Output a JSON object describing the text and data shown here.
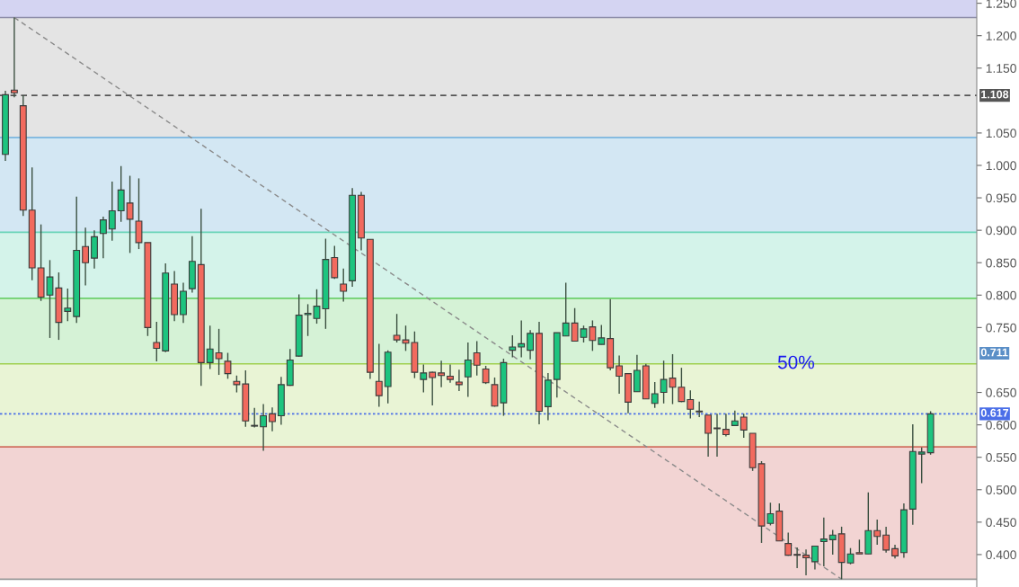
{
  "chart_data": {
    "type": "candlestick",
    "categories": [
      null,
      null,
      null,
      null,
      null,
      null,
      null,
      null,
      null,
      null,
      null,
      null,
      null,
      null,
      null,
      null,
      null,
      null,
      null,
      null,
      null,
      null,
      null,
      null,
      null,
      null,
      null,
      null,
      null,
      null,
      null,
      null,
      null,
      null,
      null,
      null,
      null,
      null,
      null,
      null,
      null,
      null,
      null,
      null,
      null,
      null,
      null,
      null,
      null,
      null,
      null,
      null,
      null,
      null,
      null,
      null,
      null,
      null,
      null,
      null,
      null,
      null,
      null,
      null,
      null,
      null,
      null,
      null,
      null,
      null,
      null,
      null,
      null,
      null,
      null,
      null,
      null,
      null,
      null,
      null,
      null,
      null,
      null,
      null,
      null,
      null,
      null,
      null,
      null,
      null,
      null,
      null,
      null,
      null,
      null,
      null,
      null,
      null,
      null,
      null,
      null,
      null,
      null,
      null,
      null
    ],
    "ohlc": [
      [
        1.017,
        1.115,
        1.007,
        1.109
      ],
      [
        1.116,
        1.228,
        1.105,
        1.112
      ],
      [
        1.092,
        1.108,
        0.922,
        0.931
      ],
      [
        0.931,
        0.997,
        0.823,
        0.842
      ],
      [
        0.842,
        0.909,
        0.791,
        0.797
      ],
      [
        0.8,
        0.854,
        0.734,
        0.828
      ],
      [
        0.811,
        0.835,
        0.731,
        0.758
      ],
      [
        0.775,
        0.81,
        0.76,
        0.78
      ],
      [
        0.767,
        0.952,
        0.757,
        0.869
      ],
      [
        0.875,
        0.904,
        0.815,
        0.85
      ],
      [
        0.857,
        0.9,
        0.841,
        0.89
      ],
      [
        0.895,
        0.921,
        0.857,
        0.916
      ],
      [
        0.902,
        0.975,
        0.884,
        0.93
      ],
      [
        0.93,
        0.999,
        0.913,
        0.962
      ],
      [
        0.942,
        0.984,
        0.865,
        0.917
      ],
      [
        0.914,
        0.98,
        0.871,
        0.881
      ],
      [
        0.881,
        0.881,
        0.737,
        0.75
      ],
      [
        0.727,
        0.759,
        0.698,
        0.718
      ],
      [
        0.714,
        0.849,
        0.712,
        0.834
      ],
      [
        0.817,
        0.837,
        0.76,
        0.77
      ],
      [
        0.77,
        0.819,
        0.757,
        0.806
      ],
      [
        0.81,
        0.891,
        0.804,
        0.852
      ],
      [
        0.847,
        0.933,
        0.66,
        0.696
      ],
      [
        0.696,
        0.753,
        0.686,
        0.717
      ],
      [
        0.711,
        0.748,
        0.677,
        0.702
      ],
      [
        0.698,
        0.711,
        0.671,
        0.679
      ],
      [
        0.667,
        0.676,
        0.65,
        0.662
      ],
      [
        0.663,
        0.684,
        0.597,
        0.606
      ],
      [
        0.598,
        0.626,
        0.596,
        0.599
      ],
      [
        0.597,
        0.632,
        0.56,
        0.614
      ],
      [
        0.617,
        0.627,
        0.59,
        0.605
      ],
      [
        0.614,
        0.674,
        0.6,
        0.662
      ],
      [
        0.661,
        0.717,
        0.66,
        0.7
      ],
      [
        0.706,
        0.801,
        0.705,
        0.769
      ],
      [
        0.77,
        0.786,
        0.737,
        0.772
      ],
      [
        0.764,
        0.809,
        0.756,
        0.783
      ],
      [
        0.779,
        0.887,
        0.748,
        0.855
      ],
      [
        0.858,
        0.876,
        0.825,
        0.827
      ],
      [
        0.817,
        0.841,
        0.79,
        0.806
      ],
      [
        0.822,
        0.965,
        0.813,
        0.954
      ],
      [
        0.954,
        0.959,
        0.869,
        0.888
      ],
      [
        0.886,
        0.886,
        0.671,
        0.681
      ],
      [
        0.667,
        0.725,
        0.628,
        0.645
      ],
      [
        0.659,
        0.715,
        0.633,
        0.712
      ],
      [
        0.738,
        0.771,
        0.727,
        0.731
      ],
      [
        0.731,
        0.753,
        0.714,
        0.726
      ],
      [
        0.727,
        0.744,
        0.672,
        0.681
      ],
      [
        0.67,
        0.693,
        0.65,
        0.68
      ],
      [
        0.681,
        0.682,
        0.63,
        0.673
      ],
      [
        0.68,
        0.699,
        0.658,
        0.676
      ],
      [
        0.675,
        0.693,
        0.665,
        0.67
      ],
      [
        0.666,
        0.685,
        0.652,
        0.662
      ],
      [
        0.674,
        0.727,
        0.643,
        0.7
      ],
      [
        0.711,
        0.729,
        0.676,
        0.692
      ],
      [
        0.686,
        0.691,
        0.663,
        0.665
      ],
      [
        0.662,
        0.673,
        0.628,
        0.629
      ],
      [
        0.634,
        0.702,
        0.614,
        0.696
      ],
      [
        0.715,
        0.738,
        0.704,
        0.72
      ],
      [
        0.72,
        0.761,
        0.704,
        0.725
      ],
      [
        0.715,
        0.746,
        0.701,
        0.741
      ],
      [
        0.741,
        0.759,
        0.601,
        0.621
      ],
      [
        0.628,
        0.68,
        0.607,
        0.669
      ],
      [
        0.67,
        0.742,
        0.642,
        0.742
      ],
      [
        0.737,
        0.819,
        0.737,
        0.757
      ],
      [
        0.757,
        0.78,
        0.729,
        0.729
      ],
      [
        0.735,
        0.753,
        0.727,
        0.748
      ],
      [
        0.751,
        0.761,
        0.714,
        0.73
      ],
      [
        0.724,
        0.754,
        0.724,
        0.734
      ],
      [
        0.733,
        0.794,
        0.684,
        0.688
      ],
      [
        0.691,
        0.707,
        0.648,
        0.675
      ],
      [
        0.679,
        0.679,
        0.618,
        0.635
      ],
      [
        0.651,
        0.708,
        0.651,
        0.684
      ],
      [
        0.691,
        0.694,
        0.64,
        0.64
      ],
      [
        0.633,
        0.666,
        0.626,
        0.648
      ],
      [
        0.65,
        0.699,
        0.633,
        0.67
      ],
      [
        0.672,
        0.709,
        0.632,
        0.658
      ],
      [
        0.658,
        0.688,
        0.635,
        0.636
      ],
      [
        0.639,
        0.653,
        0.61,
        0.624
      ],
      [
        0.621,
        0.636,
        0.612,
        0.62
      ],
      [
        0.615,
        0.615,
        0.551,
        0.587
      ],
      [
        0.595,
        0.617,
        0.551,
        0.594
      ],
      [
        0.593,
        0.617,
        0.582,
        0.585
      ],
      [
        0.599,
        0.622,
        0.599,
        0.606
      ],
      [
        0.612,
        0.617,
        0.58,
        0.592
      ],
      [
        0.587,
        0.587,
        0.529,
        0.534
      ],
      [
        0.54,
        0.544,
        0.418,
        0.444
      ],
      [
        0.448,
        0.48,
        0.445,
        0.463
      ],
      [
        0.467,
        0.479,
        0.421,
        0.421
      ],
      [
        0.417,
        0.434,
        0.398,
        0.399
      ],
      [
        0.4,
        0.411,
        0.379,
        0.399
      ],
      [
        0.399,
        0.408,
        0.368,
        0.395
      ],
      [
        0.389,
        0.413,
        0.377,
        0.413
      ],
      [
        0.42,
        0.457,
        0.382,
        0.424
      ],
      [
        0.423,
        0.438,
        0.4,
        0.43
      ],
      [
        0.432,
        0.443,
        0.362,
        0.388
      ],
      [
        0.387,
        0.41,
        0.385,
        0.401
      ],
      [
        0.403,
        0.423,
        0.401,
        0.401
      ],
      [
        0.401,
        0.496,
        0.401,
        0.437
      ],
      [
        0.437,
        0.454,
        0.415,
        0.428
      ],
      [
        0.43,
        0.443,
        0.403,
        0.407
      ],
      [
        0.409,
        0.415,
        0.394,
        0.398
      ],
      [
        0.403,
        0.479,
        0.395,
        0.469
      ],
      [
        0.47,
        0.601,
        0.446,
        0.559
      ],
      [
        0.555,
        0.565,
        0.51,
        0.558
      ],
      [
        0.557,
        0.621,
        0.554,
        0.617
      ]
    ],
    "colors": [
      "#1dc47f",
      "#f26a5e",
      "#f26a5e",
      "#f26a5e",
      "#f26a5e",
      "#1dc47f",
      "#f26a5e",
      "#1dc47f",
      "#1dc47f",
      "#f26a5e",
      "#1dc47f",
      "#1dc47f",
      "#1dc47f",
      "#1dc47f",
      "#f26a5e",
      "#f26a5e",
      "#f26a5e",
      "#f26a5e",
      "#1dc47f",
      "#f26a5e",
      "#1dc47f",
      "#1dc47f",
      "#f26a5e",
      "#1dc47f",
      "#f26a5e",
      "#f26a5e",
      "#f26a5e",
      "#f26a5e",
      "#1dc47f",
      "#1dc47f",
      "#f26a5e",
      "#1dc47f",
      "#1dc47f",
      "#1dc47f",
      "#1dc47f",
      "#1dc47f",
      "#1dc47f",
      "#f26a5e",
      "#f26a5e",
      "#1dc47f",
      "#f26a5e",
      "#f26a5e",
      "#f26a5e",
      "#1dc47f",
      "#f26a5e",
      "#f26a5e",
      "#f26a5e",
      "#1dc47f",
      "#f26a5e",
      "#f26a5e",
      "#f26a5e",
      "#f26a5e",
      "#1dc47f",
      "#f26a5e",
      "#f26a5e",
      "#f26a5e",
      "#1dc47f",
      "#1dc47f",
      "#1dc47f",
      "#1dc47f",
      "#f26a5e",
      "#1dc47f",
      "#1dc47f",
      "#1dc47f",
      "#f26a5e",
      "#1dc47f",
      "#f26a5e",
      "#1dc47f",
      "#f26a5e",
      "#f26a5e",
      "#f26a5e",
      "#1dc47f",
      "#f26a5e",
      "#1dc47f",
      "#1dc47f",
      "#f26a5e",
      "#f26a5e",
      "#f26a5e",
      "#f26a5e",
      "#f26a5e",
      "#f26a5e",
      "#f26a5e",
      "#1dc47f",
      "#f26a5e",
      "#f26a5e",
      "#f26a5e",
      "#1dc47f",
      "#f26a5e",
      "#f26a5e",
      "#f26a5e",
      "#f26a5e",
      "#1dc47f",
      "#1dc47f",
      "#1dc47f",
      "#f26a5e",
      "#1dc47f",
      "#f26a5e",
      "#1dc47f",
      "#f26a5e",
      "#f26a5e",
      "#f26a5e",
      "#1dc47f",
      "#1dc47f",
      "#1dc47f",
      "#1dc47f"
    ],
    "series": [
      {
        "type": "line",
        "color": "#8a8a8a",
        "line_style": "dashed",
        "values": [
          null,
          1.228,
          null,
          null,
          null,
          null,
          null,
          null,
          null,
          null,
          null,
          null,
          null,
          null,
          null,
          null,
          null,
          null,
          null,
          null,
          null,
          null,
          null,
          null,
          null,
          null,
          null,
          null,
          null,
          null,
          null,
          null,
          null,
          null,
          null,
          null,
          null,
          null,
          null,
          null,
          null,
          null,
          null,
          null,
          null,
          null,
          null,
          null,
          null,
          null,
          null,
          null,
          null,
          null,
          null,
          null,
          null,
          null,
          null,
          null,
          null,
          null,
          null,
          null,
          null,
          null,
          null,
          null,
          null,
          null,
          null,
          null,
          null,
          null,
          null,
          null,
          null,
          null,
          null,
          null,
          null,
          null,
          null,
          null,
          null,
          null,
          null,
          null,
          null,
          null,
          null,
          null,
          null,
          null,
          0.362,
          null,
          null,
          null,
          null,
          null,
          null,
          null,
          null,
          null,
          null
        ]
      }
    ],
    "ylim": [
      0.35,
      1.255
    ],
    "yticks": [
      {
        "value": 0.4,
        "label": "0.400"
      },
      {
        "value": 0.45,
        "label": "0.450"
      },
      {
        "value": 0.5,
        "label": "0.500"
      },
      {
        "value": 0.55,
        "label": "0.550"
      },
      {
        "value": 0.6,
        "label": "0.600"
      },
      {
        "value": 0.65,
        "label": "0.650"
      },
      {
        "value": 0.75,
        "label": "0.750"
      },
      {
        "value": 0.8,
        "label": "0.800"
      },
      {
        "value": 0.85,
        "label": "0.850"
      },
      {
        "value": 0.9,
        "label": "0.900"
      },
      {
        "value": 0.95,
        "label": "0.950"
      },
      {
        "value": 1.0,
        "label": "1.000"
      },
      {
        "value": 1.05,
        "label": "1.050"
      },
      {
        "value": 1.15,
        "label": "1.150"
      },
      {
        "value": 1.2,
        "label": "1.200"
      },
      {
        "value": 1.25,
        "label": "1.250"
      }
    ],
    "tick_labels": "y",
    "grid": false,
    "bands": [
      {
        "axis": "y",
        "from": 1.228,
        "to": 1.255,
        "color": "#d4d4f2"
      },
      {
        "axis": "y",
        "from": 1.043,
        "to": 1.228,
        "color": "#e4e4e4"
      },
      {
        "axis": "y",
        "from": 0.897,
        "to": 1.043,
        "color": "#d3e7f3"
      },
      {
        "axis": "y",
        "from": 0.795,
        "to": 0.897,
        "color": "#d4f3ea"
      },
      {
        "axis": "y",
        "from": 0.694,
        "to": 0.795,
        "color": "#d5f2d6"
      },
      {
        "axis": "y",
        "from": 0.566,
        "to": 0.694,
        "color": "#e9f4d5"
      },
      {
        "axis": "y",
        "from": 0.362,
        "to": 0.566,
        "color": "#f2d4d3"
      }
    ],
    "ref_lines": [
      {
        "axis": "y",
        "value": 1.228,
        "color": "#8c8ca8",
        "line_style": "solid"
      },
      {
        "axis": "y",
        "value": 1.043,
        "color": "#6aaedc",
        "line_style": "solid"
      },
      {
        "axis": "y",
        "value": 0.897,
        "color": "#6ad4b8",
        "line_style": "solid"
      },
      {
        "axis": "y",
        "value": 0.795,
        "color": "#6ccf6c",
        "line_style": "solid"
      },
      {
        "axis": "y",
        "value": 0.694,
        "color": "#a0d050",
        "line_style": "solid"
      },
      {
        "axis": "y",
        "value": 0.566,
        "color": "#d07060",
        "line_style": "solid"
      },
      {
        "axis": "y",
        "value": 0.362,
        "color": "#9a9a9a",
        "line_style": "solid"
      },
      {
        "axis": "y",
        "value": 1.108,
        "label": "1.108",
        "color": "#555555",
        "line_style": "dashed"
      },
      {
        "axis": "y",
        "value": 0.617,
        "label": "0.617",
        "color": "#4a6ee8",
        "line_style": "dotted"
      }
    ],
    "annotations": [
      {
        "text": "50%",
        "y": 0.694
      },
      "0.711"
    ]
  }
}
